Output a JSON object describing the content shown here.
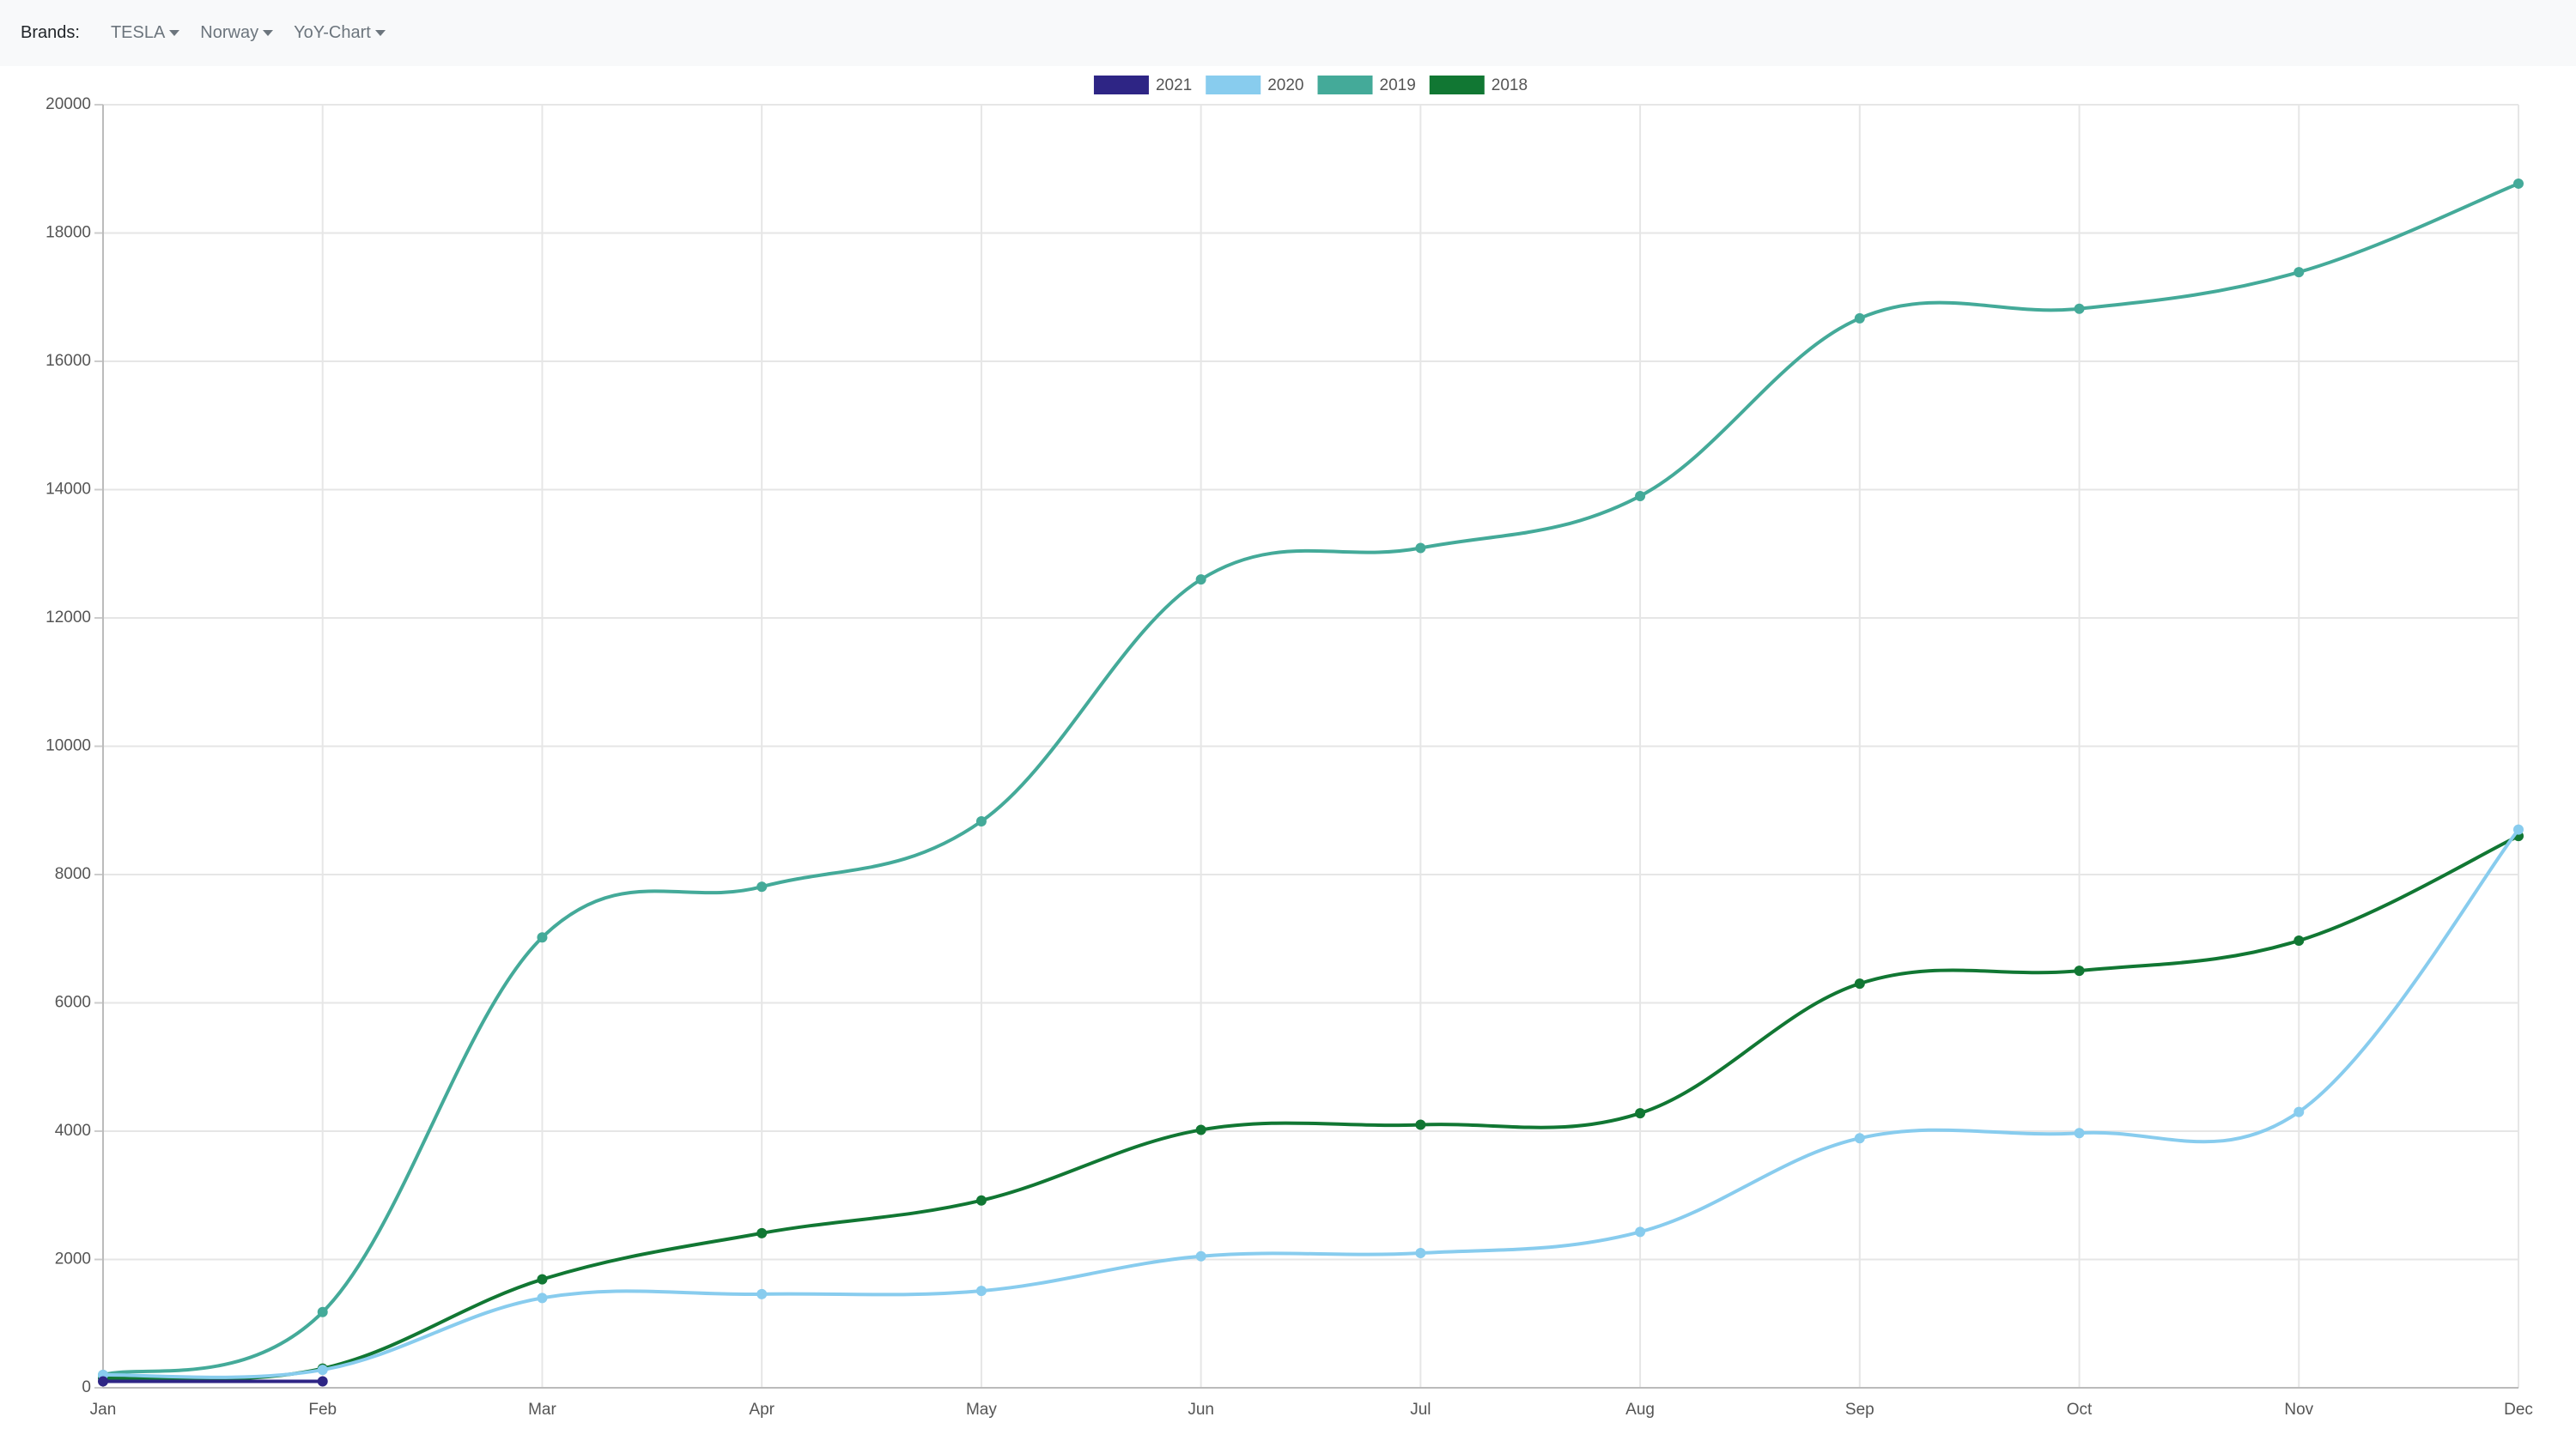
{
  "header": {
    "label": "Brands:",
    "dropdowns": [
      "TESLA",
      "Norway",
      "YoY-Chart"
    ]
  },
  "chart_data": {
    "type": "line",
    "categories": [
      "Jan",
      "Feb",
      "Mar",
      "Apr",
      "May",
      "Jun",
      "Jul",
      "Aug",
      "Sep",
      "Oct",
      "Nov",
      "Dec"
    ],
    "series": [
      {
        "name": "2021",
        "color": "#2e2585",
        "values": [
          100,
          100,
          null,
          null,
          null,
          null,
          null,
          null,
          null,
          null,
          null,
          null
        ]
      },
      {
        "name": "2020",
        "color": "#88ccee",
        "values": [
          200,
          280,
          1400,
          1460,
          1510,
          2050,
          2100,
          2430,
          3890,
          3970,
          4300,
          8700
        ]
      },
      {
        "name": "2019",
        "color": "#44aa99",
        "values": [
          200,
          1180,
          7020,
          7810,
          8830,
          12600,
          13090,
          13900,
          16670,
          16820,
          17390,
          18770
        ]
      },
      {
        "name": "2018",
        "color": "#117733",
        "values": [
          150,
          300,
          1690,
          2410,
          2920,
          4020,
          4100,
          4280,
          6300,
          6500,
          6970,
          8600
        ]
      }
    ],
    "ylim": [
      0,
      20000
    ],
    "yticks": [
      0,
      2000,
      4000,
      6000,
      8000,
      10000,
      12000,
      14000,
      16000,
      18000,
      20000
    ],
    "grid": true,
    "legend": "top"
  }
}
